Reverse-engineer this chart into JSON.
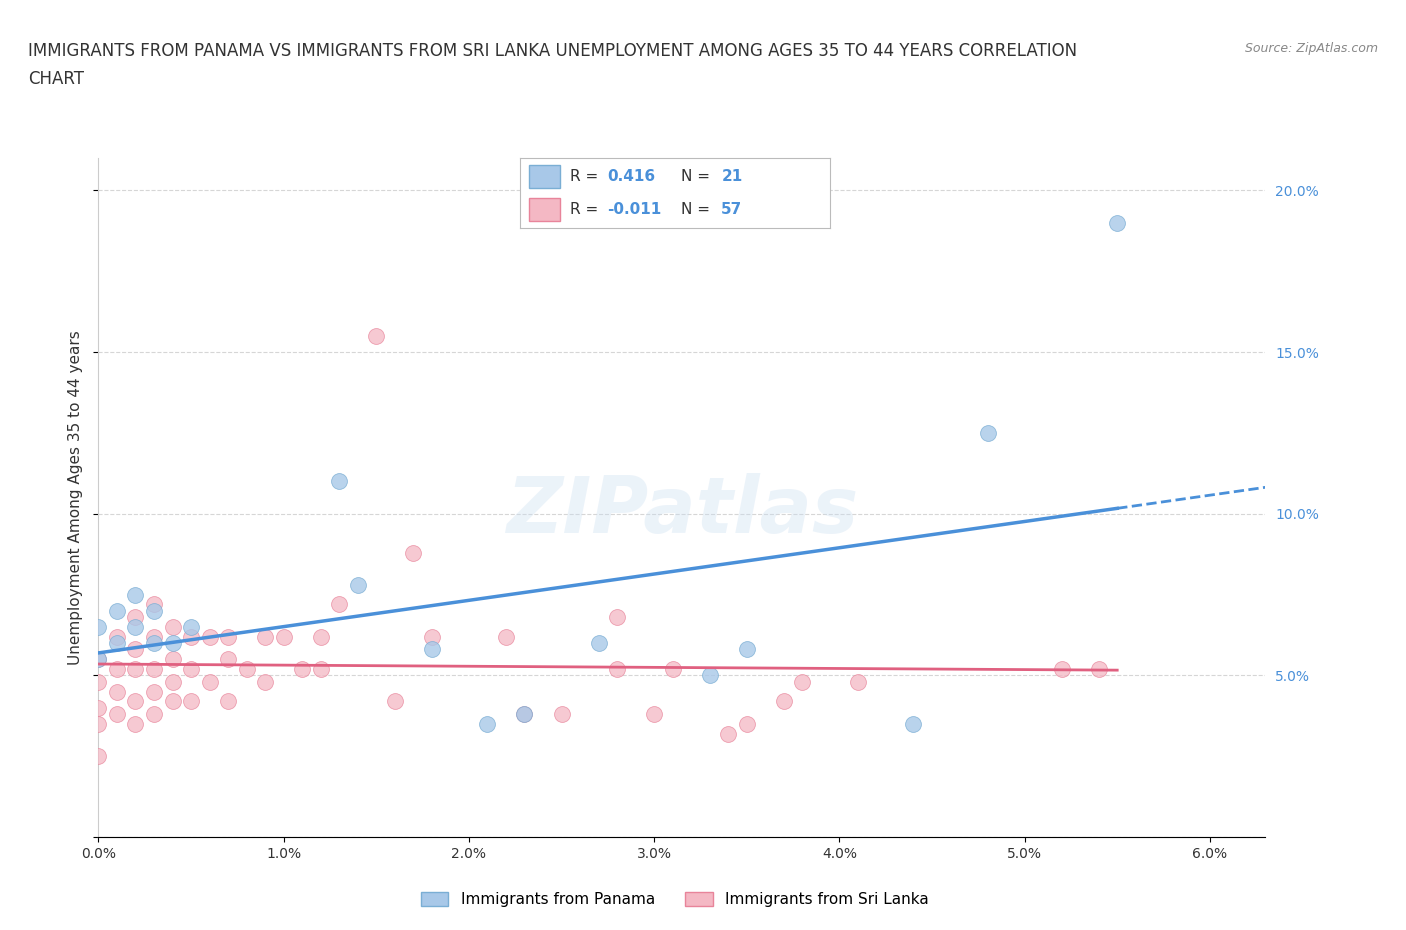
{
  "title_line1": "IMMIGRANTS FROM PANAMA VS IMMIGRANTS FROM SRI LANKA UNEMPLOYMENT AMONG AGES 35 TO 44 YEARS CORRELATION",
  "title_line2": "CHART",
  "source_text": "Source: ZipAtlas.com",
  "ylabel": "Unemployment Among Ages 35 to 44 years",
  "xlim": [
    0.0,
    0.063
  ],
  "ylim": [
    0.0,
    0.21
  ],
  "xticks": [
    0.0,
    0.01,
    0.02,
    0.03,
    0.04,
    0.05,
    0.06
  ],
  "xticklabels": [
    "0.0%",
    "1.0%",
    "2.0%",
    "3.0%",
    "4.0%",
    "5.0%",
    "6.0%"
  ],
  "yticks": [
    0.0,
    0.05,
    0.1,
    0.15,
    0.2
  ],
  "right_yticklabels": [
    "",
    "5.0%",
    "10.0%",
    "15.0%",
    "20.0%"
  ],
  "panama_color": "#a8c8e8",
  "panama_edge": "#7aaed4",
  "srilanka_color": "#f4b8c4",
  "srilanka_edge": "#e8849a",
  "trend_panama_color": "#4a90d9",
  "trend_srilanka_color": "#e06080",
  "R_panama": 0.416,
  "N_panama": 21,
  "R_srilanka": -0.011,
  "N_srilanka": 57,
  "legend_color_R": "#4a90d9",
  "legend_color_N": "#4a90d9",
  "watermark": "ZIPatlas",
  "background_color": "#ffffff",
  "grid_color": "#cccccc",
  "panama_scatter_x": [
    0.0,
    0.0,
    0.001,
    0.001,
    0.002,
    0.002,
    0.003,
    0.003,
    0.004,
    0.005,
    0.013,
    0.014,
    0.018,
    0.021,
    0.023,
    0.027,
    0.033,
    0.035,
    0.044,
    0.048,
    0.055
  ],
  "panama_scatter_y": [
    0.055,
    0.065,
    0.06,
    0.07,
    0.065,
    0.075,
    0.06,
    0.07,
    0.06,
    0.065,
    0.11,
    0.078,
    0.058,
    0.035,
    0.038,
    0.06,
    0.05,
    0.058,
    0.035,
    0.125,
    0.19
  ],
  "srilanka_scatter_x": [
    0.0,
    0.0,
    0.0,
    0.0,
    0.0,
    0.001,
    0.001,
    0.001,
    0.001,
    0.002,
    0.002,
    0.002,
    0.002,
    0.002,
    0.003,
    0.003,
    0.003,
    0.003,
    0.003,
    0.004,
    0.004,
    0.004,
    0.004,
    0.005,
    0.005,
    0.005,
    0.006,
    0.006,
    0.007,
    0.007,
    0.007,
    0.008,
    0.009,
    0.009,
    0.01,
    0.011,
    0.012,
    0.012,
    0.013,
    0.015,
    0.016,
    0.017,
    0.018,
    0.022,
    0.023,
    0.025,
    0.028,
    0.028,
    0.03,
    0.031,
    0.034,
    0.035,
    0.037,
    0.038,
    0.041,
    0.052,
    0.054
  ],
  "srilanka_scatter_y": [
    0.025,
    0.035,
    0.04,
    0.048,
    0.055,
    0.038,
    0.045,
    0.052,
    0.062,
    0.035,
    0.042,
    0.052,
    0.058,
    0.068,
    0.038,
    0.045,
    0.052,
    0.062,
    0.072,
    0.042,
    0.048,
    0.055,
    0.065,
    0.042,
    0.052,
    0.062,
    0.048,
    0.062,
    0.042,
    0.055,
    0.062,
    0.052,
    0.048,
    0.062,
    0.062,
    0.052,
    0.052,
    0.062,
    0.072,
    0.155,
    0.042,
    0.088,
    0.062,
    0.062,
    0.038,
    0.038,
    0.052,
    0.068,
    0.038,
    0.052,
    0.032,
    0.035,
    0.042,
    0.048,
    0.048,
    0.052,
    0.052
  ]
}
